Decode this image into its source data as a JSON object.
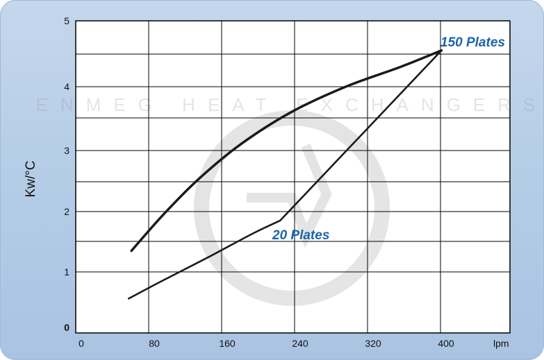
{
  "chart_data": {
    "type": "line",
    "title": "",
    "xlabel": "",
    "x_unit_label": "lpm",
    "ylabel": "Kw/°C",
    "xlim": [
      0,
      440
    ],
    "ylim": [
      0,
      5
    ],
    "x_ticks": [
      0,
      80,
      160,
      240,
      320,
      400
    ],
    "y_ticks": [
      0,
      1,
      2,
      3,
      4,
      5
    ],
    "grid": true,
    "legend": "none",
    "watermark_text": "ENMEG HEAT EXCHANGERS",
    "series": [
      {
        "name": "150 Plates",
        "color": "#1a1a1a",
        "x": [
          55,
          90,
          130,
          175,
          230,
          290,
          350,
          395
        ],
        "y": [
          1.35,
          1.95,
          2.55,
          3.1,
          3.6,
          4.0,
          4.3,
          4.55
        ]
      },
      {
        "name": "20 Plates",
        "color": "#1a1a1a",
        "x": [
          52,
          90,
          140,
          190,
          218,
          395
        ],
        "y": [
          0.52,
          0.85,
          1.25,
          1.65,
          1.85,
          4.55
        ]
      }
    ]
  }
}
